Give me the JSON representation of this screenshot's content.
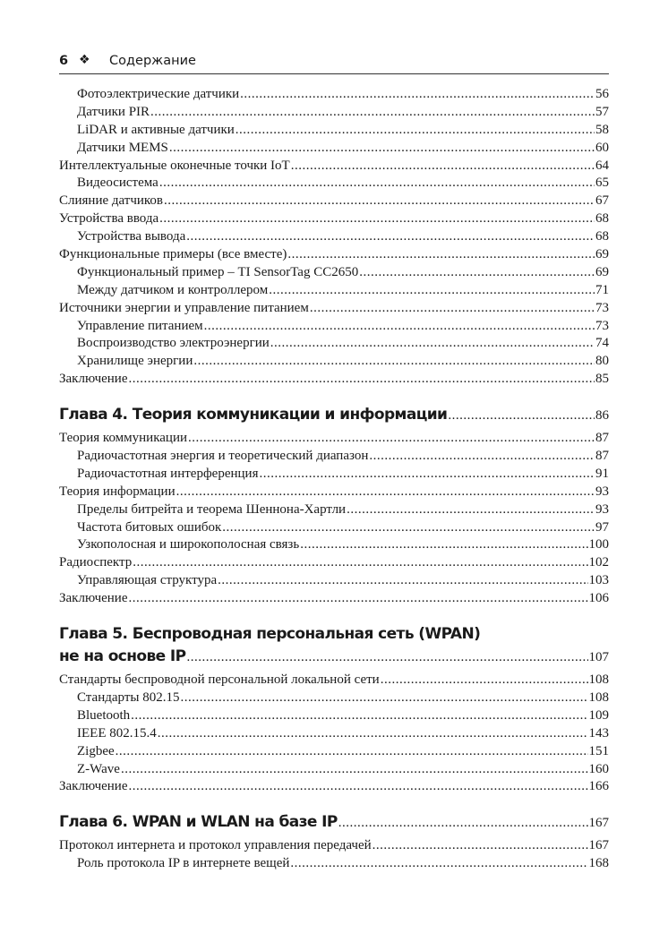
{
  "header": {
    "page_number": "6",
    "ornament": "❖",
    "title": "Содержание"
  },
  "sections": [
    {
      "entries": [
        {
          "level": 2,
          "title": "Фотоэлектрические датчики",
          "page": "56"
        },
        {
          "level": 2,
          "title": "Датчики PIR",
          "page": "57"
        },
        {
          "level": 2,
          "title": "LiDAR и активные датчики",
          "page": "58"
        },
        {
          "level": 2,
          "title": "Датчики MEMS",
          "page": "60"
        },
        {
          "level": 1,
          "title": "Интеллектуальные оконечные точки IoT",
          "page": "64"
        },
        {
          "level": 2,
          "title": "Видеосистема",
          "page": "65"
        },
        {
          "level": 1,
          "title": "Слияние датчиков",
          "page": "67"
        },
        {
          "level": 1,
          "title": "Устройства ввода",
          "page": "68"
        },
        {
          "level": 2,
          "title": "Устройства вывода",
          "page": "68"
        },
        {
          "level": 1,
          "title": "Функциональные примеры (все вместе)",
          "page": "69"
        },
        {
          "level": 2,
          "title": "Функциональный пример – TI SensorTag CC2650",
          "page": "69"
        },
        {
          "level": 2,
          "title": "Между датчиком и контроллером",
          "page": "71"
        },
        {
          "level": 1,
          "title": "Источники энергии и управление питанием",
          "page": "73"
        },
        {
          "level": 2,
          "title": "Управление питанием",
          "page": "73"
        },
        {
          "level": 2,
          "title": "Воспроизводство электроэнергии",
          "page": "74"
        },
        {
          "level": 2,
          "title": "Хранилище энергии",
          "page": "80"
        },
        {
          "level": 1,
          "title": "Заключение",
          "page": "85"
        }
      ]
    },
    {
      "chapter": {
        "lines": [
          "Глава 4. Теория коммуникации и информации"
        ],
        "page": "86"
      },
      "entries": [
        {
          "level": 1,
          "title": "Теория коммуникации",
          "page": "87"
        },
        {
          "level": 2,
          "title": "Радиочастотная энергия и теоретический диапазон",
          "page": "87"
        },
        {
          "level": 2,
          "title": "Радиочастотная интерференция",
          "page": "91"
        },
        {
          "level": 1,
          "title": "Теория информации",
          "page": "93"
        },
        {
          "level": 2,
          "title": "Пределы битрейта и теорема Шеннона-Хартли",
          "page": "93"
        },
        {
          "level": 2,
          "title": "Частота битовых ошибок",
          "page": "97"
        },
        {
          "level": 2,
          "title": "Узкополосная и широкополосная связь",
          "page": "100"
        },
        {
          "level": 1,
          "title": "Радиоспектр",
          "page": "102"
        },
        {
          "level": 2,
          "title": "Управляющая структура",
          "page": "103"
        },
        {
          "level": 1,
          "title": "Заключение",
          "page": "106"
        }
      ]
    },
    {
      "chapter": {
        "lines": [
          "Глава 5. Беспроводная персональная сеть (WPAN)",
          "не на основе IP"
        ],
        "page": "107"
      },
      "entries": [
        {
          "level": 1,
          "title": "Стандарты беспроводной персональной локальной сети",
          "page": "108"
        },
        {
          "level": 2,
          "title": "Стандарты 802.15",
          "page": "108"
        },
        {
          "level": 2,
          "title": "Bluetooth",
          "page": "109"
        },
        {
          "level": 2,
          "title": "IEEE 802.15.4",
          "page": "143"
        },
        {
          "level": 2,
          "title": "Zigbee",
          "page": "151"
        },
        {
          "level": 2,
          "title": "Z-Wave",
          "page": "160"
        },
        {
          "level": 1,
          "title": "Заключение",
          "page": "166"
        }
      ]
    },
    {
      "chapter": {
        "lines": [
          "Глава 6. WPAN и WLAN на базе IP"
        ],
        "page": "167"
      },
      "entries": [
        {
          "level": 1,
          "title": "Протокол интернета и протокол управления передачей",
          "page": "167"
        },
        {
          "level": 2,
          "title": "Роль протокола IP в интернете вещей",
          "page": "168"
        }
      ]
    }
  ]
}
